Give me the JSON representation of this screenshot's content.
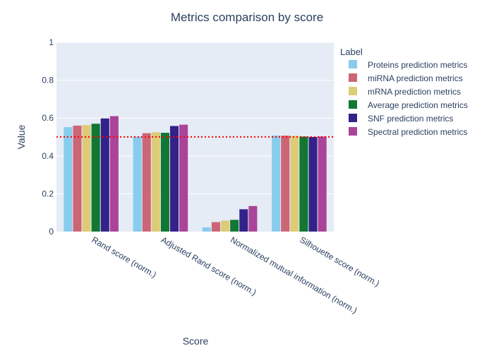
{
  "chart_data": {
    "type": "bar",
    "title": "Metrics comparison by score",
    "xlabel": "Score",
    "ylabel": "Value",
    "ylim": [
      0,
      1
    ],
    "yticks": [
      "0",
      "0.2",
      "0.4",
      "0.6",
      "0.8",
      "1"
    ],
    "categories": [
      "Rand score (norm.)",
      "Adjusted Rand score (norm.)",
      "Normalized mutual information (norm.)",
      "Silhouette score (norm.)"
    ],
    "legend_title": "Label",
    "legend_position": "right",
    "grid": true,
    "plot_background": "#e5ecf6",
    "reference_line": {
      "y": 0.5,
      "color": "#ff0000",
      "style": "dotted"
    },
    "series": [
      {
        "name": "Proteins prediction metrics",
        "color": "#88ccee",
        "values": [
          0.552,
          0.502,
          0.022,
          0.508
        ]
      },
      {
        "name": "miRNA prediction metrics",
        "color": "#cc6677",
        "values": [
          0.56,
          0.52,
          0.05,
          0.507
        ]
      },
      {
        "name": "mRNA prediction metrics",
        "color": "#ddcc77",
        "values": [
          0.563,
          0.525,
          0.058,
          0.506
        ]
      },
      {
        "name": "Average prediction metrics",
        "color": "#117733",
        "values": [
          0.57,
          0.522,
          0.062,
          0.502
        ]
      },
      {
        "name": "SNF prediction metrics",
        "color": "#332288",
        "values": [
          0.598,
          0.558,
          0.118,
          0.5
        ]
      },
      {
        "name": "Spectral prediction metrics",
        "color": "#aa4499",
        "values": [
          0.61,
          0.565,
          0.135,
          0.502
        ]
      }
    ]
  }
}
